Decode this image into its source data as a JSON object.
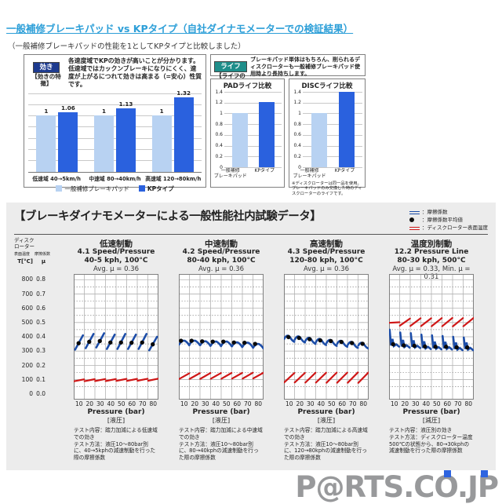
{
  "page": {
    "title": "一般補修ブレーキパッド vs KPタイプ（自社ダイナモメーターでの検証結果）",
    "subtitle": "（一般補修ブレーキパッドの性能を1としてKPタイプと比較しました）"
  },
  "colors": {
    "title_blue": "#2d9fd8",
    "bar_light": "#b8d2f2",
    "bar_dark": "#2a61de",
    "badge_eff": "#1d3a8f",
    "badge_life": "#1f8e8a",
    "line_blue": "#1c4da8",
    "line_red": "#cf1717",
    "dot_black": "#0a0a0a"
  },
  "top": {
    "box1": {
      "badge": "効き",
      "label": "【効きの特徴】",
      "desc": "各速度域でKPの効きが高いことが分かります。低速域ではカックンブレーキになりにくく、速度が上がるにつれて効きは高まる（=安心）性質です。"
    },
    "box2": {
      "badge": "ライフ",
      "label": "【ライフの特徴】",
      "desc": "ブレーキパッド単体はもちろん、削られるディスクローターも一般補修ブレーキパッド使用時より長持ちします。"
    }
  },
  "section2": {
    "heading": "【ブレーキダイナモメーターによる一般性能社内試験データ】",
    "legend": [
      {
        "type": "blue-line",
        "label": "：摩擦係数"
      },
      {
        "type": "black-dot",
        "label": "：摩擦係数平均値"
      },
      {
        "type": "red-line",
        "label": "：ディスクローター表面温度"
      }
    ],
    "axis": {
      "line1": "ディスク",
      "line2": "ローター",
      "col1_small": "表面温度",
      "col2_small": "摩擦係数",
      "col1_unit": "T[°C]",
      "col2_unit": "μ",
      "temp_ticks": [
        800,
        700,
        600,
        500,
        400,
        300,
        200,
        100,
        0
      ],
      "mu_ticks": [
        "0.8",
        "0.7",
        "0.6",
        "0.5",
        "0.4",
        "0.3",
        "0.2",
        "0.1",
        "0.0"
      ]
    }
  },
  "chart_data": [
    {
      "id": "eff-compare",
      "type": "bar",
      "categories": [
        "低速域 40→5km/h",
        "中速域 80→40km/h",
        "高速域 120→80km/h"
      ],
      "series": [
        {
          "name": "一般補修ブレーキパッド",
          "values": [
            1,
            1,
            1
          ],
          "color": "#b8d2f2"
        },
        {
          "name": "KPタイプ",
          "values": [
            1.06,
            1.13,
            1.32
          ],
          "color": "#2a61de"
        }
      ],
      "value_labels": [
        "1",
        "1.06",
        "1",
        "1.13",
        "1",
        "1.32"
      ],
      "ylim": [
        0,
        1.4
      ],
      "grid_step": 0.2
    },
    {
      "id": "pad-life",
      "type": "bar",
      "title": "PADライフ比較",
      "categories": [
        "一般補修\nブレーキパッド",
        "KPタイプ"
      ],
      "values": [
        1,
        1.21
      ],
      "colors": [
        "#b8d2f2",
        "#2a61de"
      ],
      "ylim": [
        0,
        1.4
      ],
      "yticks": [
        "1.4",
        "1.2",
        "1",
        "0.8",
        "0.6",
        "0.4",
        "0.2",
        "0"
      ]
    },
    {
      "id": "disc-life",
      "type": "bar",
      "title": "DISCライフ比較",
      "categories": [
        "一般補修\nブレーキパッド",
        "KPタイプ"
      ],
      "values": [
        1,
        1.4
      ],
      "colors": [
        "#b8d2f2",
        "#2a61de"
      ],
      "ylim": [
        0,
        1.4
      ],
      "yticks": [
        "1.4",
        "1.2",
        "1",
        "0.8",
        "0.6",
        "0.4",
        "0.2",
        "0"
      ],
      "note": "※ディスクローターは同一品を使用。ブレーキパッドのみ交換した時のディスクローターのライフです。"
    },
    {
      "id": "panel-low-speed",
      "type": "scatter",
      "title": "低速制動",
      "subtitle": "4.1 Speed/Pressure",
      "condition": "40-5 kph, 100°C",
      "avg_label": "Avg. μ = 0.36",
      "x": [
        10,
        20,
        30,
        40,
        50,
        60,
        70,
        80
      ],
      "xlabel": "Pressure (bar)",
      "xlabel_sub": "[液圧]",
      "shape": "rise",
      "mu_avg_dots": [
        0.355,
        0.365,
        0.37,
        0.36,
        0.36,
        0.358,
        0.36,
        0.347
      ],
      "mu_stroke_ranges": [
        [
          0.31,
          0.41
        ],
        [
          0.32,
          0.42
        ],
        [
          0.325,
          0.425
        ],
        [
          0.315,
          0.415
        ],
        [
          0.315,
          0.42
        ],
        [
          0.315,
          0.415
        ],
        [
          0.315,
          0.42
        ],
        [
          0.305,
          0.4
        ]
      ],
      "rotor_temp_segments": [
        [
          88,
          102
        ],
        [
          89,
          103
        ],
        [
          90,
          104
        ],
        [
          90,
          104
        ],
        [
          91,
          105
        ],
        [
          91,
          105
        ],
        [
          92,
          106
        ],
        [
          92,
          107
        ]
      ],
      "desc1": "テスト内容：踏力加減による低速域での効き",
      "desc2": "テスト方法：液圧10～80bar別に、40→5kphの減速制動を行った際の摩擦係数"
    },
    {
      "id": "panel-mid-speed",
      "type": "scatter",
      "title": "中速制動",
      "subtitle": "4.2 Speed/Pressure",
      "condition": "80-40 kph, 100°C",
      "avg_label": "Avg. μ = 0.36",
      "x": [
        10,
        20,
        30,
        40,
        50,
        60,
        70,
        80
      ],
      "xlabel": "Pressure (bar)",
      "xlabel_sub": "[液圧]",
      "shape": "hook",
      "mu_avg_dots": [
        0.372,
        0.372,
        0.368,
        0.366,
        0.366,
        0.36,
        0.358,
        0.35
      ],
      "mu_stroke_ranges": [
        [
          0.34,
          0.378
        ],
        [
          0.342,
          0.378
        ],
        [
          0.336,
          0.374
        ],
        [
          0.334,
          0.372
        ],
        [
          0.334,
          0.372
        ],
        [
          0.328,
          0.366
        ],
        [
          0.326,
          0.364
        ],
        [
          0.318,
          0.355
        ]
      ],
      "rotor_temp_segments": [
        [
          104,
          144
        ],
        [
          105,
          145
        ],
        [
          105,
          146
        ],
        [
          106,
          146
        ],
        [
          106,
          147
        ],
        [
          107,
          147
        ],
        [
          107,
          148
        ],
        [
          108,
          148
        ]
      ],
      "desc1": "テスト内容：踏力加減による中速域での効き",
      "desc2": "テスト方法：液圧10～80bar別に、80→40kphの減速制動を行った際の摩擦係数"
    },
    {
      "id": "panel-high-speed",
      "type": "scatter",
      "title": "高速制動",
      "subtitle": "4.3 Speed/Pressure",
      "condition": "120-80 kph, 100°C",
      "avg_label": "Avg. μ = 0.36",
      "x": [
        10,
        20,
        30,
        40,
        50,
        60,
        70,
        80
      ],
      "xlabel": "Pressure (bar)",
      "xlabel_sub": "[液圧]",
      "shape": "arch",
      "mu_avg_dots": [
        0.398,
        0.392,
        0.383,
        0.375,
        0.37,
        0.364,
        0.356,
        0.351
      ],
      "mu_stroke_ranges": [
        [
          0.365,
          0.41
        ],
        [
          0.36,
          0.405
        ],
        [
          0.35,
          0.395
        ],
        [
          0.342,
          0.387
        ],
        [
          0.336,
          0.38
        ],
        [
          0.33,
          0.374
        ],
        [
          0.322,
          0.366
        ],
        [
          0.318,
          0.36
        ]
      ],
      "rotor_temp_segments": [
        [
          80,
          146
        ],
        [
          80,
          147
        ],
        [
          79,
          148
        ],
        [
          79,
          148
        ],
        [
          78,
          149
        ],
        [
          78,
          149
        ],
        [
          78,
          150
        ],
        [
          77,
          150
        ]
      ],
      "desc1": "テスト内容：踏力加減による高速域での効き",
      "desc2": "テスト方法：液圧10～80bar別に、120→80kphの減速制動を行った際の摩擦係数"
    },
    {
      "id": "panel-temperature",
      "type": "scatter",
      "title": "温度別制動",
      "subtitle": "12.2 Pressure Line",
      "condition": "80-30 kph, 500°C",
      "avg_label": "Avg. μ = 0.33, Min. μ = 0.31",
      "x": [
        10,
        20,
        30,
        40,
        50,
        60,
        70,
        80
      ],
      "xlabel": "Pressure (bar)",
      "xlabel_sub": "[減圧]",
      "shape": "spike",
      "mu_avg_dots": [
        0.348,
        0.34,
        0.337,
        0.332,
        0.33,
        0.33,
        0.326,
        0.325
      ],
      "mu_stroke_ranges": [
        [
          0.335,
          0.45
        ],
        [
          0.328,
          0.43
        ],
        [
          0.325,
          0.425
        ],
        [
          0.318,
          0.415
        ],
        [
          0.316,
          0.41
        ],
        [
          0.315,
          0.405
        ],
        [
          0.31,
          0.4
        ],
        [
          0.31,
          0.395
        ]
      ],
      "rotor_temp_segments": [
        [
          498,
          502
        ],
        [
          478,
          528
        ],
        [
          476,
          530
        ],
        [
          475,
          530
        ],
        [
          474,
          531
        ],
        [
          474,
          532
        ],
        [
          473,
          531
        ],
        [
          474,
          532
        ]
      ],
      "desc1": "テスト内容：液圧別の効き",
      "desc2": "テスト方法：ディスクローター温度500℃の状態から、80→30kphの減速制動を行った際の摩擦係数"
    }
  ],
  "logo": {
    "text": "P@RTS.CO.JP"
  }
}
